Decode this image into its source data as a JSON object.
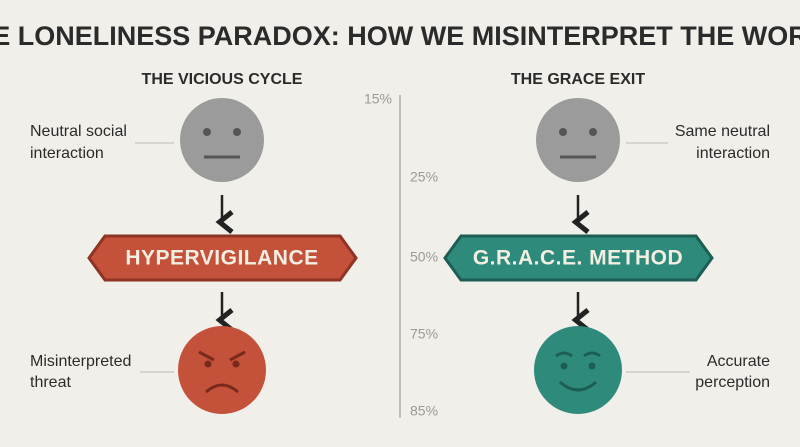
{
  "title": "THE LONELINESS PARADOX: HOW WE MISINTERPRET THE WORLD",
  "left": {
    "heading": "THE VICIOUS CYCLE",
    "top_label": [
      "Neutral social",
      "interaction"
    ],
    "banner": "HYPERVIGILANCE",
    "bottom_label": [
      "Misinterpreted",
      "threat"
    ]
  },
  "right": {
    "heading": "THE GRACE EXIT",
    "top_label": [
      "Same neutral",
      "interaction"
    ],
    "banner": "G.R.A.C.E. METHOD",
    "bottom_label": [
      "Accurate",
      "perception"
    ]
  },
  "scale": [
    "15%",
    "25%",
    "50%",
    "75%",
    "85%"
  ]
}
